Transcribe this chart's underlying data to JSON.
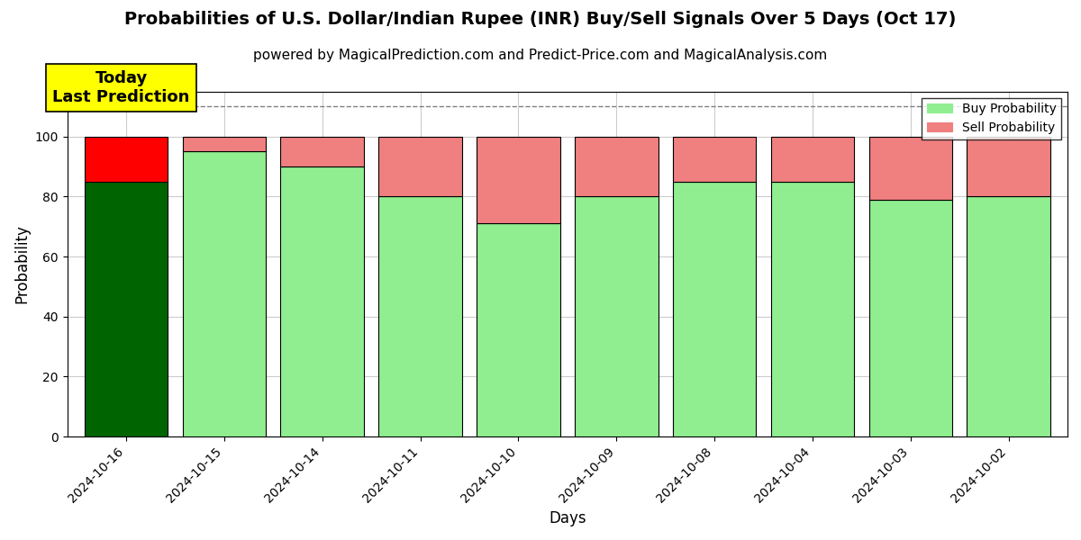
{
  "title": "Probabilities of U.S. Dollar/Indian Rupee (INR) Buy/Sell Signals Over 5 Days (Oct 17)",
  "subtitle": "powered by MagicalPrediction.com and Predict-Price.com and MagicalAnalysis.com",
  "xlabel": "Days",
  "ylabel": "Probability",
  "dates": [
    "2024-10-16",
    "2024-10-15",
    "2024-10-14",
    "2024-10-11",
    "2024-10-10",
    "2024-10-09",
    "2024-10-08",
    "2024-10-04",
    "2024-10-03",
    "2024-10-02"
  ],
  "buy_values": [
    85,
    95,
    90,
    80,
    71,
    80,
    85,
    85,
    79,
    80
  ],
  "sell_values": [
    15,
    5,
    10,
    20,
    29,
    20,
    15,
    15,
    21,
    20
  ],
  "buy_colors": [
    "#006400",
    "#90EE90",
    "#90EE90",
    "#90EE90",
    "#90EE90",
    "#90EE90",
    "#90EE90",
    "#90EE90",
    "#90EE90",
    "#90EE90"
  ],
  "sell_colors": [
    "#FF0000",
    "#F08080",
    "#F08080",
    "#F08080",
    "#F08080",
    "#F08080",
    "#F08080",
    "#F08080",
    "#F08080",
    "#F08080"
  ],
  "today_label": "Today\nLast Prediction",
  "legend_buy": "Buy Probability",
  "legend_sell": "Sell Probability",
  "ylim": [
    0,
    115
  ],
  "yticks": [
    0,
    20,
    40,
    60,
    80,
    100
  ],
  "dashed_line_y": 110,
  "bg_color": "#ffffff",
  "plot_bg_color": "#ffffff",
  "grid_color": "#cccccc",
  "title_fontsize": 14,
  "subtitle_fontsize": 11,
  "axis_label_fontsize": 12,
  "tick_fontsize": 10,
  "bar_width": 0.85
}
